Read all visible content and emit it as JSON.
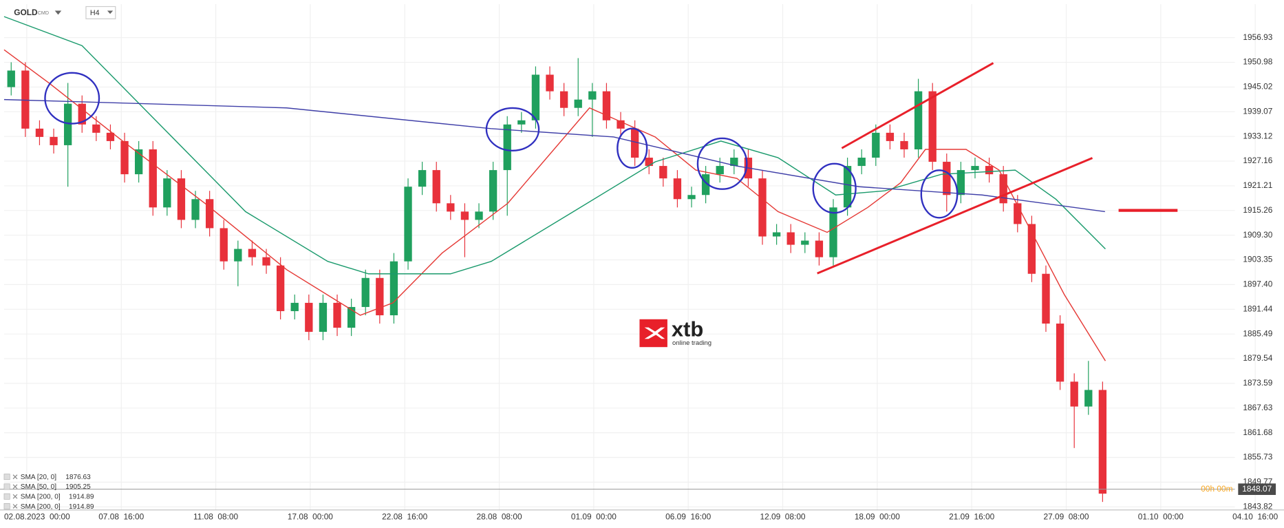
{
  "header": {
    "symbol": "GOLD",
    "market": "CMD",
    "interval": "H4"
  },
  "logo": {
    "text": "xtb",
    "tagline": "online trading"
  },
  "chart_data": {
    "type": "candlestick",
    "xlim": [
      0,
      265
    ],
    "xticks": [
      {
        "value": 4.8,
        "label": "02.08.2023  00:00"
      },
      {
        "value": 24.8,
        "label": "07.08  16:00"
      },
      {
        "value": 44.8,
        "label": "11.08  08:00"
      },
      {
        "value": 64.8,
        "label": "17.08  00:00"
      },
      {
        "value": 84.8,
        "label": "22.08  16:00"
      },
      {
        "value": 104.8,
        "label": "28.08  08:00"
      },
      {
        "value": 124.8,
        "label": "01.09  00:00"
      },
      {
        "value": 144.8,
        "label": "06.09  16:00"
      },
      {
        "value": 164.8,
        "label": "12.09  08:00"
      },
      {
        "value": 184.8,
        "label": "18.09  00:00"
      },
      {
        "value": 204.8,
        "label": "21.09  16:00"
      },
      {
        "value": 224.8,
        "label": "27.09  08:00"
      },
      {
        "value": 244.8,
        "label": "01.10  00:00"
      },
      {
        "value": 264.8,
        "label": "04.10  16:00"
      }
    ],
    "ylim": [
      1843.06,
      1965.02
    ],
    "yticks": [
      1956.93,
      1950.98,
      1945.02,
      1939.07,
      1933.12,
      1927.16,
      1921.21,
      1915.26,
      {
        "value": 1909.3,
        "label": "1909.30"
      },
      1903.35,
      {
        "value": 1897.4,
        "label": "1897.40"
      },
      1891.44,
      1885.49,
      1879.54,
      1873.59,
      1867.63,
      1861.68,
      1855.73,
      1849.77,
      1843.82
    ],
    "grid": true,
    "up_color": "#20a05e",
    "down_color": "#e8313b",
    "x": [
      1.5,
      4.5,
      7.5,
      10.5,
      13.5,
      16.5,
      19.5,
      22.5,
      25.5,
      28.5,
      31.5,
      34.5,
      37.5,
      40.5,
      43.5,
      46.5,
      49.5,
      52.5,
      55.5,
      58.5,
      61.5,
      64.5,
      67.5,
      70.5,
      73.5,
      76.5,
      79.5,
      82.5,
      85.5,
      88.5,
      91.5,
      94.5,
      97.5,
      100.5,
      103.5,
      106.5,
      109.5,
      112.5,
      115.5,
      118.5,
      121.5,
      124.5,
      127.5,
      130.5,
      133.5,
      136.5,
      139.5,
      142.5,
      145.5,
      148.5,
      151.5,
      154.5,
      157.5,
      160.5,
      163.5,
      166.5,
      169.5,
      172.5,
      175.5,
      178.5,
      181.5,
      184.5,
      187.5,
      190.5,
      193.5,
      196.5,
      199.5,
      202.5,
      205.5,
      208.5,
      211.5,
      214.5,
      217.5,
      220.5,
      223.5,
      226.5,
      229.5,
      232.5
    ],
    "open": [
      1945,
      1949,
      1935,
      1933,
      1931,
      1941,
      1936,
      1934,
      1932,
      1924,
      1930,
      1916,
      1923,
      1913,
      1918,
      1911,
      1903,
      1906,
      1904,
      1902,
      1891,
      1893,
      1886,
      1893,
      1887,
      1892,
      1899,
      1890,
      1903,
      1921,
      1925,
      1917,
      1915,
      1913,
      1915,
      1925,
      1936,
      1937,
      1948,
      1944,
      1940,
      1942,
      1944,
      1937,
      1935,
      1928,
      1926,
      1923,
      1918,
      1919,
      1924,
      1926,
      1928,
      1923,
      1909,
      1910,
      1907,
      1908,
      1904,
      1916,
      1926,
      1928,
      1934,
      1932,
      1930,
      1944,
      1927,
      1919,
      1925,
      1926,
      1924,
      1917,
      1912,
      1900,
      1888,
      1874,
      1868,
      1872
    ],
    "high": [
      1951,
      1951,
      1937,
      1935,
      1946,
      1943,
      1938,
      1936,
      1934,
      1932,
      1932,
      1925,
      1925,
      1920,
      1920,
      1913,
      1908,
      1908,
      1906,
      1904,
      1895,
      1895,
      1895,
      1895,
      1894,
      1901,
      1901,
      1905,
      1923,
      1927,
      1927,
      1919,
      1917,
      1917,
      1927,
      1938,
      1939,
      1950,
      1950,
      1946,
      1952,
      1946,
      1946,
      1939,
      1937,
      1930,
      1928,
      1925,
      1921,
      1926,
      1928,
      1930,
      1930,
      1925,
      1912,
      1912,
      1910,
      1910,
      1918,
      1928,
      1930,
      1936,
      1936,
      1934,
      1947,
      1946,
      1929,
      1927,
      1928,
      1928,
      1926,
      1919,
      1914,
      1902,
      1890,
      1876,
      1879,
      1874
    ],
    "low": [
      1943,
      1933,
      1931,
      1929,
      1921,
      1934,
      1932,
      1930,
      1922,
      1922,
      1914,
      1914,
      1911,
      1911,
      1909,
      1901,
      1897,
      1902,
      1900,
      1889,
      1889,
      1884,
      1884,
      1885,
      1885,
      1890,
      1888,
      1888,
      1901,
      1919,
      1915,
      1913,
      1904,
      1911,
      1913,
      1914,
      1934,
      1935,
      1942,
      1938,
      1938,
      1933,
      1935,
      1933,
      1926,
      1924,
      1921,
      1916,
      1916,
      1917,
      1922,
      1924,
      1921,
      1907,
      1907,
      1905,
      1905,
      1902,
      1902,
      1914,
      1924,
      1926,
      1930,
      1928,
      1928,
      1925,
      1915,
      1917,
      1923,
      1922,
      1915,
      1910,
      1898,
      1886,
      1872,
      1858,
      1866,
      1845
    ],
    "close": [
      1949,
      1935,
      1933,
      1931,
      1941,
      1936,
      1934,
      1932,
      1924,
      1930,
      1916,
      1923,
      1913,
      1918,
      1911,
      1903,
      1906,
      1904,
      1902,
      1891,
      1893,
      1886,
      1893,
      1887,
      1892,
      1899,
      1890,
      1903,
      1921,
      1925,
      1917,
      1915,
      1913,
      1915,
      1925,
      1936,
      1937,
      1948,
      1944,
      1940,
      1942,
      1944,
      1937,
      1935,
      1928,
      1926,
      1923,
      1918,
      1919,
      1924,
      1926,
      1928,
      1923,
      1909,
      1910,
      1907,
      1908,
      1904,
      1916,
      1926,
      1928,
      1934,
      1932,
      1930,
      1944,
      1927,
      1919,
      1925,
      1926,
      1924,
      1917,
      1912,
      1900,
      1888,
      1874,
      1868,
      1872,
      1847
    ],
    "series": [
      {
        "color": "#e53935",
        "x": [
          0,
          9.5,
          25.1,
          42.5,
          59.8,
          75.4,
          82.3,
          92.7,
          106.6,
          123.9,
          137.8,
          146.4,
          155.1,
          163.8,
          174.2,
          182.8,
          189.8,
          195,
          203.6,
          210.6,
          217.5,
          224.4,
          233.1
        ],
        "values": [
          1954,
          1946,
          1932,
          1917,
          1901,
          1890,
          1893,
          1905,
          1917,
          1940,
          1933,
          1925,
          1923,
          1915,
          1910,
          1916,
          1922,
          1930,
          1930,
          1925,
          1910,
          1895,
          1879
        ]
      },
      {
        "color": "#1a9a6c",
        "x": [
          0,
          16.5,
          33.8,
          51.1,
          68.5,
          77.1,
          94.5,
          103.1,
          120.5,
          137.8,
          151.7,
          163.8,
          176,
          186.4,
          198.4,
          214,
          222.6,
          233.1
        ],
        "values": [
          1962,
          1955,
          1935,
          1915,
          1903,
          1900,
          1900,
          1903,
          1915,
          1927,
          1932,
          1928,
          1919,
          1920,
          1924,
          1925,
          1918,
          1906
        ]
      },
      {
        "color": "#3f3fa8",
        "x": [
          0,
          59.8,
          103,
          129,
          155,
          181,
          207,
          233
        ],
        "values": [
          1942,
          1940,
          1935,
          1933,
          1926,
          1921,
          1919,
          1915
        ]
      }
    ],
    "legend": [
      {
        "name": "SMA [20, 0]",
        "value": 1876.63
      },
      {
        "name": "SMA [50, 0]",
        "value": 1905.25
      },
      {
        "name": "SMA [200, 0]",
        "value": 1914.89
      },
      {
        "name": "SMA [200, 0]",
        "value": 1914.89
      }
    ],
    "last_price": 1848.07,
    "countdown": "00h 00m"
  }
}
